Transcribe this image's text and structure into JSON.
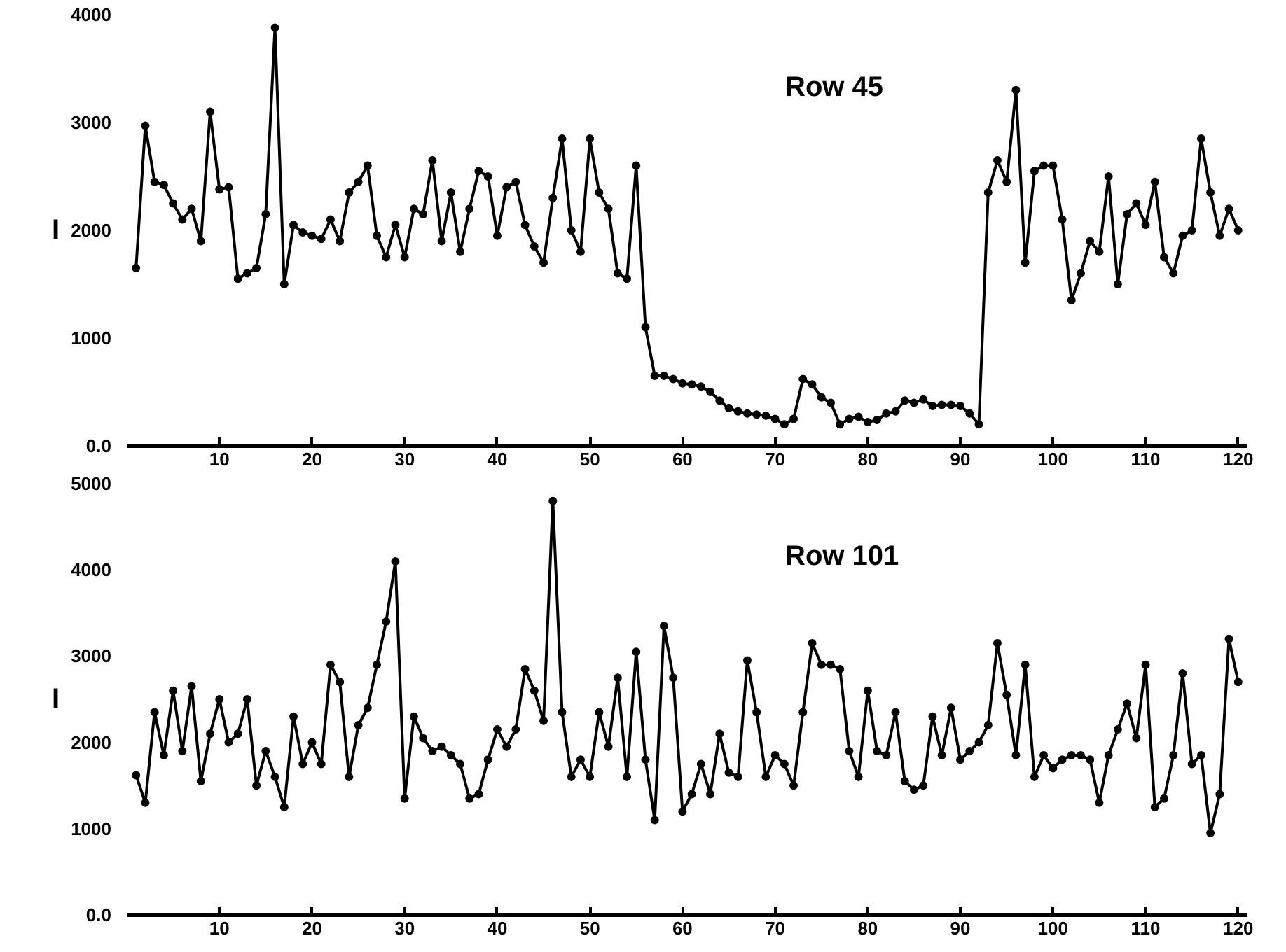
{
  "chart_data": [
    {
      "type": "line",
      "title": "Row 45",
      "ylabel": "I",
      "marker": "circle",
      "line_style": "solid",
      "grid": false,
      "xlim": [
        0,
        121
      ],
      "xticks": [
        10,
        20,
        30,
        40,
        50,
        60,
        70,
        80,
        90,
        100,
        110,
        120
      ],
      "ylim": [
        0,
        4000
      ],
      "yticks": [
        {
          "value": 0,
          "label": "0.0"
        },
        1000,
        2000,
        3000,
        4000
      ],
      "x": [
        1,
        2,
        3,
        4,
        5,
        6,
        7,
        8,
        9,
        10,
        11,
        12,
        13,
        14,
        15,
        16,
        17,
        18,
        19,
        20,
        21,
        22,
        23,
        24,
        25,
        26,
        27,
        28,
        29,
        30,
        31,
        32,
        33,
        34,
        35,
        36,
        37,
        38,
        39,
        40,
        41,
        42,
        43,
        44,
        45,
        46,
        47,
        48,
        49,
        50,
        51,
        52,
        53,
        54,
        55,
        56,
        57,
        58,
        59,
        60,
        61,
        62,
        63,
        64,
        65,
        66,
        67,
        68,
        69,
        70,
        71,
        72,
        73,
        74,
        75,
        76,
        77,
        78,
        79,
        80,
        81,
        82,
        83,
        84,
        85,
        86,
        87,
        88,
        89,
        90,
        91,
        92,
        93,
        94,
        95,
        96,
        97,
        98,
        99,
        100,
        101,
        102,
        103,
        104,
        105,
        106,
        107,
        108,
        109,
        110,
        111,
        112,
        113,
        114,
        115,
        116,
        117,
        118,
        119,
        120
      ],
      "series": [
        {
          "color": "#000000",
          "values": [
            1650,
            2970,
            2450,
            2420,
            2250,
            2100,
            2200,
            1900,
            3100,
            2380,
            2400,
            1550,
            1600,
            1650,
            2150,
            3880,
            1500,
            2050,
            1980,
            1950,
            1920,
            2100,
            1900,
            2350,
            2450,
            2600,
            1950,
            1750,
            2050,
            1750,
            2200,
            2150,
            2650,
            1900,
            2350,
            1800,
            2200,
            2550,
            2500,
            1950,
            2400,
            2450,
            2050,
            1850,
            1700,
            2300,
            2850,
            2000,
            1800,
            2850,
            2350,
            2200,
            1600,
            1550,
            2600,
            1100,
            650,
            650,
            620,
            580,
            570,
            550,
            500,
            420,
            350,
            320,
            300,
            290,
            280,
            250,
            200,
            250,
            620,
            570,
            450,
            400,
            200,
            250,
            270,
            220,
            240,
            300,
            320,
            420,
            400,
            430,
            370,
            380,
            380,
            370,
            300,
            200,
            2350,
            2650,
            2450,
            3300,
            1700,
            2550,
            2600,
            2600,
            2100,
            1350,
            1600,
            1900,
            1800,
            2500,
            1500,
            2150,
            2250,
            2050,
            2450,
            1750,
            1600,
            1950,
            2000,
            2850,
            2350,
            1950,
            2200,
            2000
          ]
        }
      ]
    },
    {
      "type": "line",
      "title": "Row 101",
      "ylabel": "I",
      "marker": "circle",
      "line_style": "solid",
      "grid": false,
      "xlim": [
        0,
        121
      ],
      "xticks": [
        10,
        20,
        30,
        40,
        50,
        60,
        70,
        80,
        90,
        100,
        110,
        120
      ],
      "ylim": [
        0,
        5000
      ],
      "yticks": [
        {
          "value": 0,
          "label": "0.0"
        },
        1000,
        2000,
        3000,
        4000,
        5000
      ],
      "x": [
        1,
        2,
        3,
        4,
        5,
        6,
        7,
        8,
        9,
        10,
        11,
        12,
        13,
        14,
        15,
        16,
        17,
        18,
        19,
        20,
        21,
        22,
        23,
        24,
        25,
        26,
        27,
        28,
        29,
        30,
        31,
        32,
        33,
        34,
        35,
        36,
        37,
        38,
        39,
        40,
        41,
        42,
        43,
        44,
        45,
        46,
        47,
        48,
        49,
        50,
        51,
        52,
        53,
        54,
        55,
        56,
        57,
        58,
        59,
        60,
        61,
        62,
        63,
        64,
        65,
        66,
        67,
        68,
        69,
        70,
        71,
        72,
        73,
        74,
        75,
        76,
        77,
        78,
        79,
        80,
        81,
        82,
        83,
        84,
        85,
        86,
        87,
        88,
        89,
        90,
        91,
        92,
        93,
        94,
        95,
        96,
        97,
        98,
        99,
        100,
        101,
        102,
        103,
        104,
        105,
        106,
        107,
        108,
        109,
        110,
        111,
        112,
        113,
        114,
        115,
        116,
        117,
        118,
        119,
        120
      ],
      "series": [
        {
          "color": "#000000",
          "values": [
            1620,
            1300,
            2350,
            1850,
            2600,
            1900,
            2650,
            1550,
            2100,
            2500,
            2000,
            2100,
            2500,
            1500,
            1900,
            1600,
            1250,
            2300,
            1750,
            2000,
            1750,
            2900,
            2700,
            1600,
            2200,
            2400,
            2900,
            3400,
            4100,
            1350,
            2300,
            2050,
            1900,
            1950,
            1850,
            1750,
            1350,
            1400,
            1800,
            2150,
            1950,
            2150,
            2850,
            2600,
            2250,
            4800,
            2350,
            1600,
            1800,
            1600,
            2350,
            1950,
            2750,
            1600,
            3050,
            1800,
            1100,
            3350,
            2750,
            1200,
            1400,
            1750,
            1400,
            2100,
            1650,
            1600,
            2950,
            2350,
            1600,
            1850,
            1750,
            1500,
            2350,
            3150,
            2900,
            2900,
            2850,
            1900,
            1600,
            2600,
            1900,
            1850,
            2350,
            1550,
            1450,
            1500,
            2300,
            1850,
            2400,
            1800,
            1900,
            2000,
            2200,
            3150,
            2550,
            1850,
            2900,
            1600,
            1850,
            1700,
            1800,
            1850,
            1850,
            1800,
            1300,
            1850,
            2150,
            2450,
            2050,
            2900,
            1250,
            1350,
            1850,
            2800,
            1750,
            1850,
            950,
            1400,
            3200,
            2700
          ]
        }
      ]
    }
  ]
}
